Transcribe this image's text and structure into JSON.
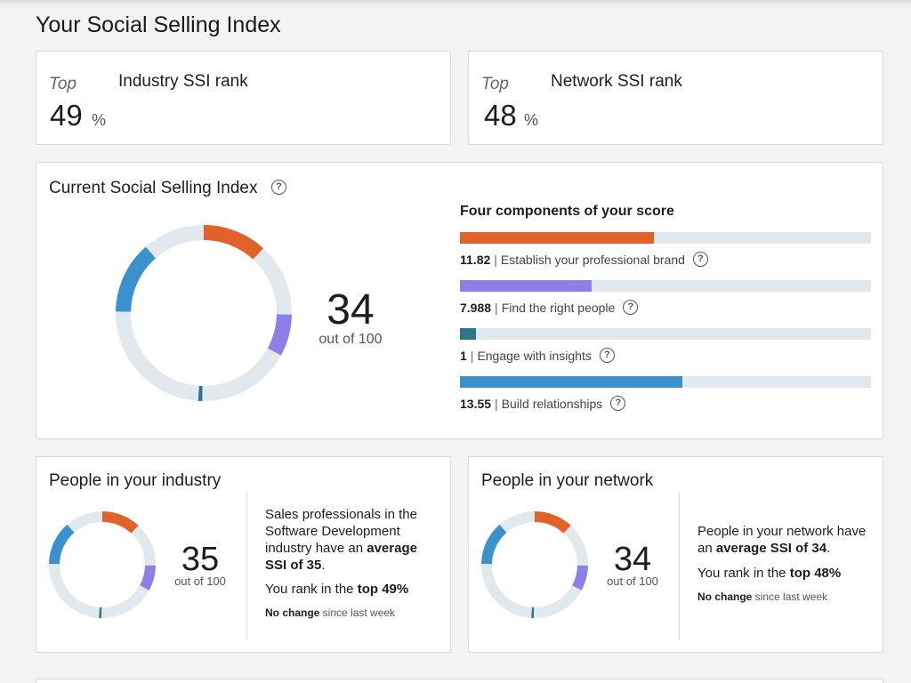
{
  "page": {
    "title": "Your Social Selling Index"
  },
  "rank_cards": [
    {
      "top_label": "Top",
      "title": "Industry SSI rank",
      "value": "49",
      "unit": "%"
    },
    {
      "top_label": "Top",
      "title": "Network SSI rank",
      "value": "48",
      "unit": "%"
    }
  ],
  "current": {
    "title": "Current Social Selling Index",
    "score": "34",
    "out_of": "out of 100",
    "components_heading": "Four components of your score",
    "components": [
      {
        "value": "11.82",
        "separator": "|",
        "label": "Establish your professional brand",
        "score": 11.82,
        "max": 25,
        "color": "#e0622a"
      },
      {
        "value": "7.988",
        "separator": "|",
        "label": "Find the right people",
        "score": 7.988,
        "max": 25,
        "color": "#8c7fe6"
      },
      {
        "value": "1",
        "separator": "|",
        "label": "Engage with insights",
        "score": 1,
        "max": 25,
        "color": "#2e7585"
      },
      {
        "value": "13.55",
        "separator": "|",
        "label": "Build relationships",
        "score": 13.55,
        "max": 25,
        "color": "#3b91cc"
      }
    ]
  },
  "industry": {
    "title": "People in your industry",
    "score": "35",
    "out_of": "out of 100",
    "text_pre": "Sales professionals in the Software Development industry have an ",
    "text_bold": "average SSI of 35",
    "text_post": ".",
    "rank_pre": "You rank in the ",
    "rank_bold": "top 49%",
    "change_bold": "No change",
    "change_rest": " since last week",
    "segments": [
      11.82,
      7.988,
      1,
      13.55
    ]
  },
  "network": {
    "title": "People in your network",
    "score": "34",
    "out_of": "out of 100",
    "text_pre": "People in your network have an ",
    "text_bold": "average SSI of 34",
    "text_post": ".",
    "rank_pre": "You rank in the ",
    "rank_bold": "top 48%",
    "change_bold": "No change",
    "change_rest": " since last week",
    "segments": [
      11.82,
      7.988,
      1,
      13.55
    ]
  },
  "colors": {
    "brand": "#e0622a",
    "people": "#8c7fe6",
    "insights": "#2e7585",
    "relationships": "#3b91cc",
    "track": "#e1e8ee"
  },
  "icons": {
    "help": "question-circle-icon"
  }
}
